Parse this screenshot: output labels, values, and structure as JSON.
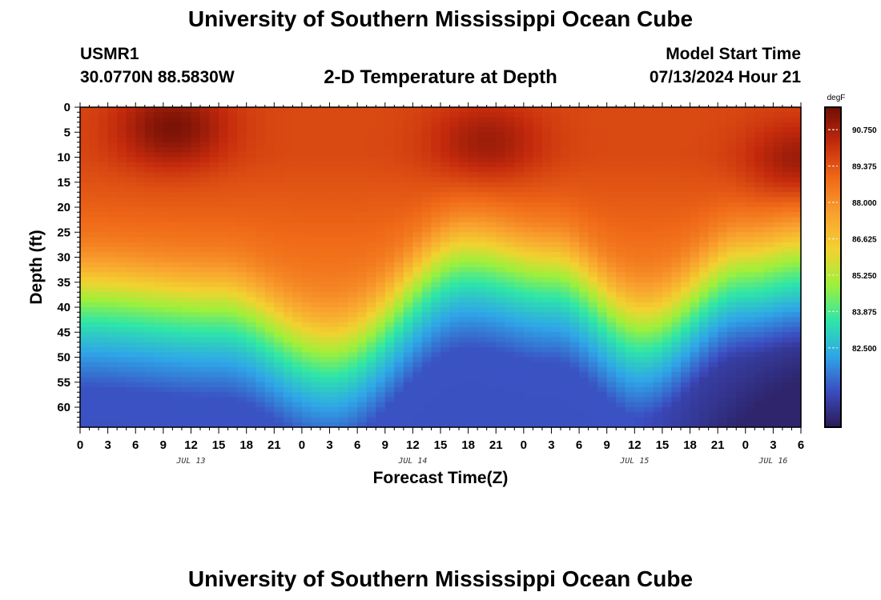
{
  "header": {
    "title": "University of Southern Mississippi Ocean Cube",
    "station_id": "USMR1",
    "coords": "30.0770N  88.5830W",
    "plot_title": "2-D Temperature at Depth",
    "start_label": "Model Start Time",
    "start_value": "07/13/2024 Hour 21"
  },
  "footer": {
    "title": "University of Southern Mississippi Ocean Cube"
  },
  "chart_data": {
    "type": "heatmap",
    "title": "2-D Temperature at Depth",
    "xlabel": "Forecast Time(Z)",
    "ylabel": "Depth (ft)",
    "x_hours_range": [
      0,
      78
    ],
    "x_tick_labels": [
      "0",
      "3",
      "6",
      "9",
      "12",
      "15",
      "18",
      "21",
      "0",
      "3",
      "6",
      "9",
      "12",
      "15",
      "18",
      "21",
      "0",
      "3",
      "6",
      "9",
      "12",
      "15",
      "18",
      "21",
      "0",
      "3",
      "6"
    ],
    "date_labels": [
      {
        "text": "JUL 13",
        "hour": 12
      },
      {
        "text": "JUL 14",
        "hour": 36
      },
      {
        "text": "JUL 15",
        "hour": 60
      },
      {
        "text": "JUL 16",
        "hour": 75
      }
    ],
    "ylim": [
      0,
      64
    ],
    "y_ticks": [
      0,
      5,
      10,
      15,
      20,
      25,
      30,
      35,
      40,
      45,
      50,
      55,
      60
    ],
    "colorbar": {
      "unit": "degF",
      "range": [
        79.5,
        91.6
      ],
      "ticks": [
        "90.750",
        "89.375",
        "88.000",
        "86.625",
        "85.250",
        "83.875",
        "82.500"
      ],
      "tick_values": [
        90.75,
        89.375,
        88.0,
        86.625,
        85.25,
        83.875,
        82.5
      ],
      "stops": [
        "#2a1a55",
        "#3b4cc0",
        "#2fa6e8",
        "#2ee6a8",
        "#9ef03b",
        "#f2d230",
        "#f9a12f",
        "#f06a18",
        "#c42a0c",
        "#6e0e06"
      ]
    },
    "thermocline_depth_ft": [
      {
        "hour": 0,
        "depth": 34
      },
      {
        "hour": 15,
        "depth": 36
      },
      {
        "hour": 27,
        "depth": 45
      },
      {
        "hour": 42,
        "depth": 26
      },
      {
        "hour": 51,
        "depth": 29
      },
      {
        "hour": 61,
        "depth": 40
      },
      {
        "hour": 72,
        "depth": 28
      },
      {
        "hour": 78,
        "depth": 26
      }
    ],
    "surface_hotspots": [
      {
        "hour": 10,
        "depth": 4,
        "temp_degF": 91.4
      },
      {
        "hour": 44,
        "depth": 7,
        "temp_degF": 90.9
      },
      {
        "hour": 78,
        "depth": 11,
        "temp_degF": 91.0
      }
    ]
  }
}
